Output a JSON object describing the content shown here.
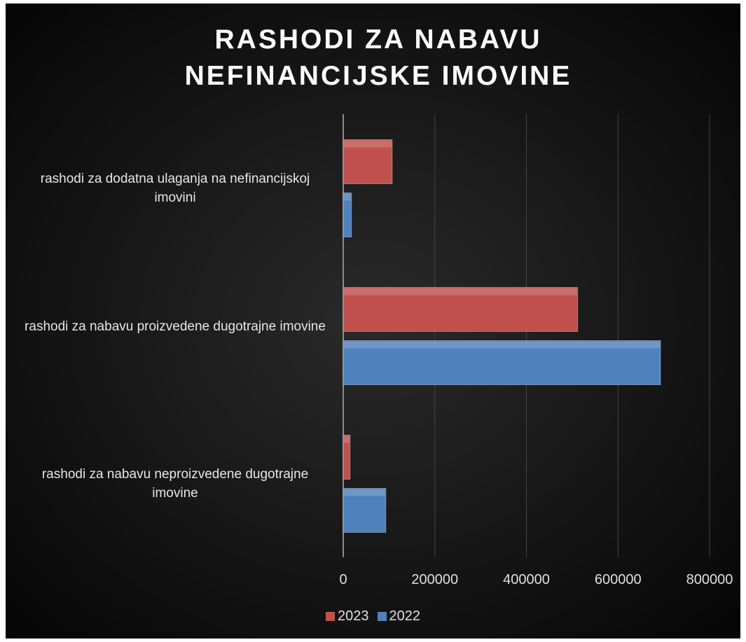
{
  "chart_data": {
    "type": "bar",
    "orientation": "horizontal",
    "title": "RASHODI ZA NABAVU NEFINANCIJSKE IMOVINE",
    "categories": [
      "rashodi za dodatna ulaganja na nefinancijskoj imovini",
      "rashodi za nabavu proizvedene dugotrajne imovine",
      "rashodi za nabavu neproizvedene dugotrajne imovine"
    ],
    "series": [
      {
        "name": "2023",
        "color": "#c0504d",
        "values": [
          107000,
          512000,
          15000
        ]
      },
      {
        "name": "2022",
        "color": "#4f81bd",
        "values": [
          18000,
          693000,
          93000
        ]
      }
    ],
    "xlim": [
      0,
      800000
    ],
    "xticks": [
      0,
      200000,
      400000,
      600000,
      800000
    ],
    "grid": true,
    "legend": "bottom"
  }
}
